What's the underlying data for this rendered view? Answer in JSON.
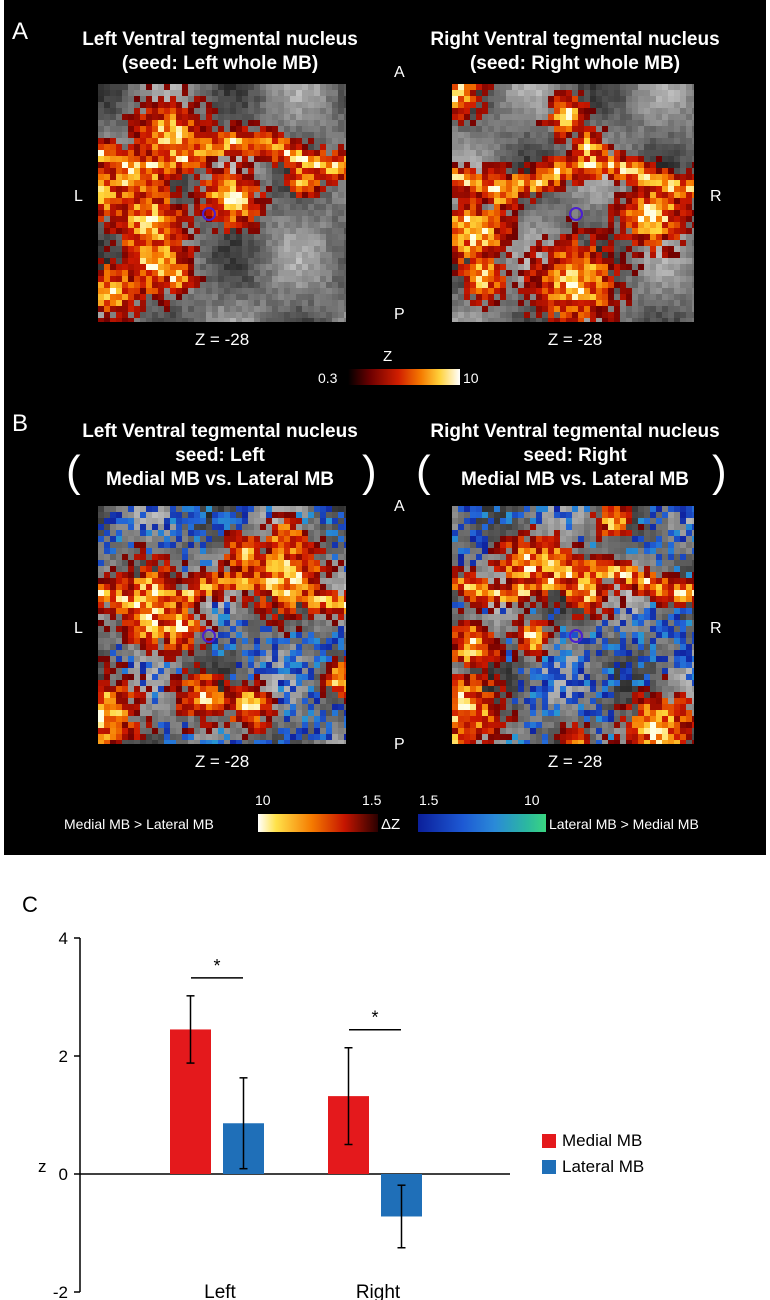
{
  "panel_a": {
    "letter": "A",
    "left_title_1": "Left Ventral tegmental nucleus",
    "left_title_2": "(seed: Left whole MB)",
    "right_title_1": "Right Ventral tegmental nucleus",
    "right_title_2": "(seed: Right whole MB)",
    "orient_anterior": "A",
    "orient_posterior": "P",
    "orient_left": "L",
    "orient_right": "R",
    "slice_left": "Z = -28",
    "slice_right": "Z = -28",
    "colorbar_label": "Z",
    "colorbar_min": "0.3",
    "colorbar_max": "10"
  },
  "panel_b": {
    "letter": "B",
    "left_title_1": "Left Ventral tegmental nucleus",
    "left_title_2": "seed: Left",
    "left_title_3": "Medial MB vs. Lateral MB",
    "right_title_1": "Right Ventral tegmental nucleus",
    "right_title_2": "seed: Right",
    "right_title_3": "Medial MB vs. Lateral MB",
    "orient_anterior": "A",
    "orient_posterior": "P",
    "orient_left": "L",
    "orient_right": "R",
    "slice_left": "Z = -28",
    "slice_right": "Z = -28",
    "colorbar_left_text": "Medial MB > Lateral MB",
    "colorbar_right_text": "Lateral MB > Medial MB",
    "colorbar_center": "ΔZ",
    "warm_max": "10",
    "warm_min": "1.5",
    "cool_min": "1.5",
    "cool_max": "10"
  },
  "panel_c": {
    "letter": "C"
  },
  "colors": {
    "medial": "#e4191c",
    "lateral": "#1f6fb8",
    "background": "#000000"
  },
  "chart_data": {
    "type": "bar",
    "categories": [
      "Left",
      "Right"
    ],
    "series": [
      {
        "name": "Medial MB",
        "values": [
          2.45,
          1.32
        ],
        "errors": [
          0.57,
          0.82
        ]
      },
      {
        "name": "Lateral MB",
        "values": [
          0.86,
          -0.72
        ],
        "errors": [
          0.77,
          0.53
        ]
      }
    ],
    "ylabel": "z",
    "ylim": [
      -2,
      4
    ],
    "yticks": [
      -2,
      0,
      2,
      4
    ],
    "significance": [
      {
        "category": "Left",
        "label": "*"
      },
      {
        "category": "Right",
        "label": "*"
      }
    ],
    "legend_position": "right"
  }
}
